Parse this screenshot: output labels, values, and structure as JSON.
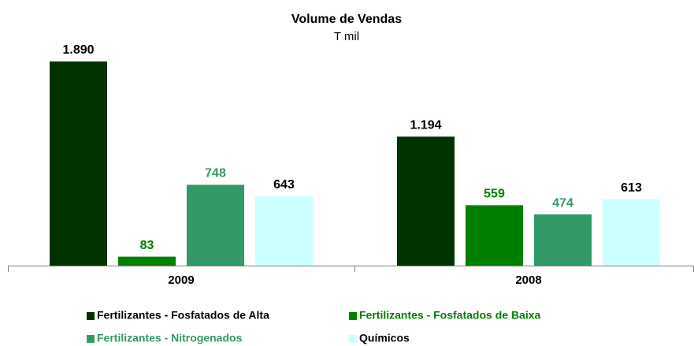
{
  "chart_data": {
    "type": "bar",
    "title": "Volume de Vendas",
    "subtitle": "T mil",
    "categories": [
      "2009",
      "2008"
    ],
    "series": [
      {
        "name": "Fertilizantes - Fosfatados de Alta",
        "color": "#003300",
        "label_color": "#000000",
        "values": [
          1890,
          1194
        ],
        "value_labels": [
          "1.890",
          "1.194"
        ]
      },
      {
        "name": "Fertilizantes - Fosfatados de Baixa",
        "color": "#008000",
        "label_color": "#008000",
        "values": [
          83,
          559
        ]
      },
      {
        "name": "Fertilizantes - Nitrogenados",
        "color": "#339966",
        "label_color": "#339966",
        "values": [
          748,
          474
        ]
      },
      {
        "name": "Químicos",
        "color": "#ccffff",
        "label_color": "#000000",
        "values": [
          643,
          613
        ]
      }
    ]
  }
}
